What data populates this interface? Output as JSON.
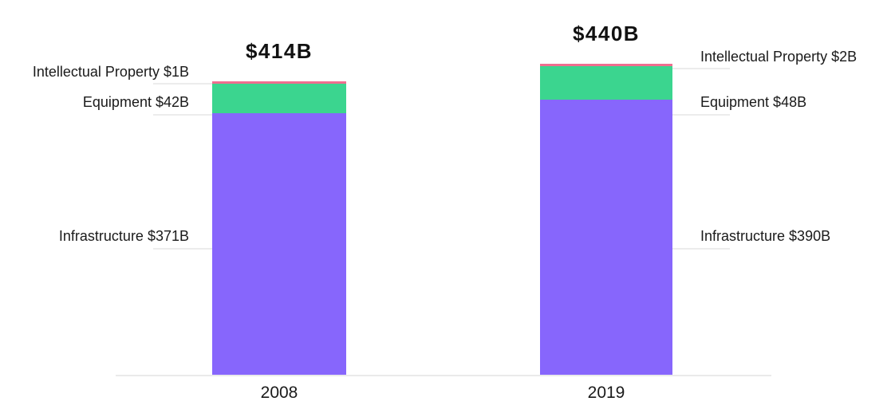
{
  "chart_data": {
    "type": "bar",
    "subtype": "stacked-vertical",
    "categories": [
      "2008",
      "2019"
    ],
    "series": [
      {
        "name": "Infrastructure",
        "values": [
          371,
          390
        ],
        "color": "#8766FC"
      },
      {
        "name": "Equipment",
        "values": [
          42,
          48
        ],
        "color": "#3BD58F"
      },
      {
        "name": "Intellectual Property",
        "values": [
          1,
          2
        ],
        "color": "#F06E8F"
      }
    ],
    "totals": [
      414,
      440
    ],
    "total_labels": [
      "$414B",
      "$440B"
    ],
    "value_unit": "$ billions",
    "ylim": [
      0,
      440
    ],
    "grid": false,
    "legend_position": "none-direct-callout-labels",
    "axis_line_color": "#eaeaea",
    "leader_line_color": "#ececec",
    "text_color": "#1a1a1a"
  },
  "bars": [
    {
      "category": "2008",
      "total_label": "$414B",
      "label_side": "left",
      "labels": {
        "intellectual_property": "Intellectual Property $1B",
        "equipment": "Equipment $42B",
        "infrastructure": "Infrastructure $371B"
      }
    },
    {
      "category": "2019",
      "total_label": "$440B",
      "label_side": "right",
      "labels": {
        "intellectual_property": "Intellectual Property $2B",
        "equipment": "Equipment $48B",
        "infrastructure": "Infrastructure $390B"
      }
    }
  ]
}
